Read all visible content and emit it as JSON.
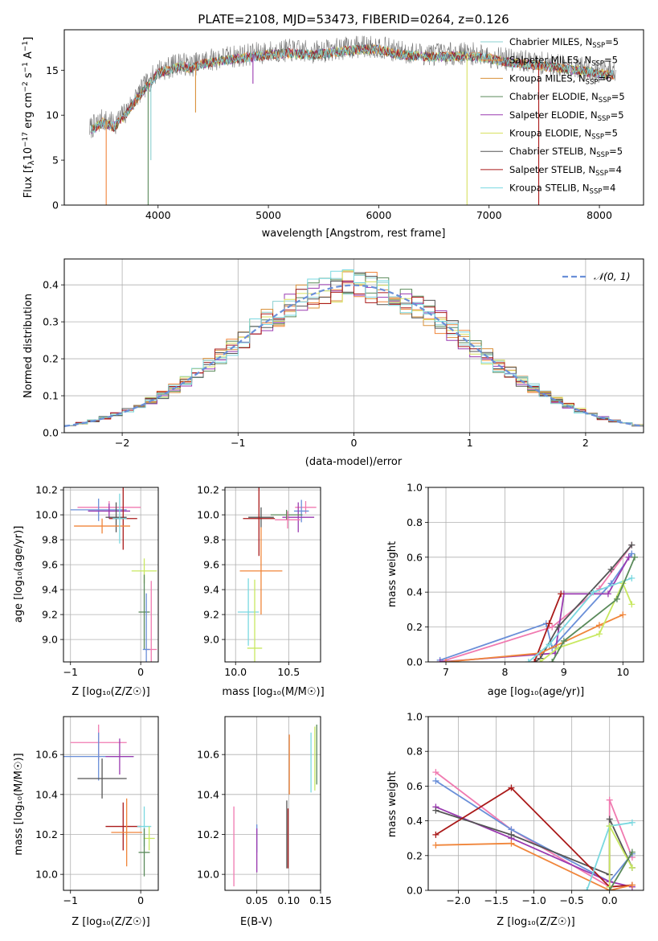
{
  "figure": {
    "title": "PLATE=2108, MJD=53473, FIBERID=0264, z=0.126"
  },
  "colors": {
    "axis": "#000000",
    "grid": "#b0b0b0",
    "normal_curve": "#6a8fd8",
    "model_lines": [
      "#8ad0d0",
      "#f0853a",
      "#d9903a",
      "#5a8a5a",
      "#9a3ab0",
      "#d8e060",
      "#555555",
      "#aa1a1a",
      "#7ad8e0"
    ],
    "point_lines": [
      "#f07ab0",
      "#6a8fd8",
      "#9a3ab0",
      "#555555",
      "#aa1a1a",
      "#f0853a",
      "#7ad8e0",
      "#c8e860",
      "#5a8a5a"
    ]
  },
  "chart_data": [
    {
      "id": "spectrum",
      "type": "line",
      "title": "PLATE=2108, MJD=53473, FIBERID=0264, z=0.126",
      "xlabel": "wavelength [Angstrom, rest frame]",
      "ylabel_parts": [
        "Flux [f",
        "λ",
        "10",
        "−17",
        " erg cm",
        "−2",
        " s",
        "−1",
        " A",
        "−1",
        "]"
      ],
      "xlim": [
        3150,
        8400
      ],
      "ylim": [
        0,
        19.5
      ],
      "xticks": [
        4000,
        5000,
        6000,
        7000,
        8000
      ],
      "xtick_labels": [
        "4000",
        "5000",
        "6000",
        "7000",
        "8000"
      ],
      "yticks": [
        0,
        5,
        10,
        15
      ],
      "ytick_labels": [
        "0",
        "5",
        "10",
        "15"
      ],
      "legend_location": "right",
      "series": [
        {
          "name": "Chabrier MILES, N_SSP=5",
          "label_main": "Chabrier MILES, N",
          "label_sub": "SSP",
          "label_end": "=5"
        },
        {
          "name": "Salpeter MILES, N_SSP=5",
          "label_main": "Salpeter MILES, N",
          "label_sub": "SSP",
          "label_end": "=5"
        },
        {
          "name": "Kroupa MILES, N_SSP=6",
          "label_main": "Kroupa MILES, N",
          "label_sub": "SSP",
          "label_end": "=6"
        },
        {
          "name": "Chabrier ELODIE, N_SSP=5",
          "label_main": "Chabrier ELODIE, N",
          "label_sub": "SSP",
          "label_end": "=5"
        },
        {
          "name": "Salpeter ELODIE, N_SSP=5",
          "label_main": "Salpeter ELODIE, N",
          "label_sub": "SSP",
          "label_end": "=5"
        },
        {
          "name": "Kroupa ELODIE, N_SSP=5",
          "label_main": "Kroupa ELODIE, N",
          "label_sub": "SSP",
          "label_end": "=5"
        },
        {
          "name": "Chabrier STELIB, N_SSP=5",
          "label_main": "Chabrier STELIB, N",
          "label_sub": "SSP",
          "label_end": "=5"
        },
        {
          "name": "Salpeter STELIB, N_SSP=4",
          "label_main": "Salpeter STELIB, N",
          "label_sub": "SSP",
          "label_end": "=4"
        },
        {
          "name": "Kroupa STELIB, N_SSP=4",
          "label_main": "Kroupa STELIB, N",
          "label_sub": "SSP",
          "label_end": "=4"
        }
      ],
      "envelope": {
        "x": [
          3380,
          3500,
          3600,
          3700,
          3800,
          3900,
          4000,
          4100,
          4200,
          4300,
          4400,
          4600,
          4800,
          5000,
          5200,
          5400,
          5600,
          5800,
          6000,
          6200,
          6400,
          6600,
          6800,
          7000,
          7200,
          7400,
          7600,
          7800,
          8000,
          8150
        ],
        "y": [
          8.5,
          9.5,
          9.0,
          10.2,
          12.0,
          13.5,
          15.0,
          15.3,
          15.8,
          15.5,
          16.0,
          16.4,
          16.7,
          17.0,
          17.2,
          17.0,
          17.3,
          17.6,
          17.6,
          17.0,
          16.8,
          16.8,
          16.9,
          16.6,
          16.1,
          15.9,
          15.6,
          15.3,
          14.9,
          14.8
        ]
      },
      "drops": [
        {
          "x": 3530,
          "y": 0
        },
        {
          "x": 3910,
          "y": 0
        },
        {
          "x": 6800,
          "y": 0
        },
        {
          "x": 7450,
          "y": 0
        },
        {
          "x": 3935,
          "y": 5
        },
        {
          "x": 4340,
          "y": 10.3
        },
        {
          "x": 4860,
          "y": 13.5
        }
      ]
    },
    {
      "id": "residuals",
      "type": "histogram",
      "xlabel": "(data-model)/error",
      "ylabel": "Normed distribution",
      "xlim": [
        -2.5,
        2.5
      ],
      "ylim": [
        0,
        0.47
      ],
      "xticks": [
        -2,
        -1,
        0,
        1,
        2
      ],
      "xtick_labels": [
        "−2",
        "−1",
        "0",
        "1",
        "2"
      ],
      "yticks": [
        0,
        0.1,
        0.2,
        0.3,
        0.4
      ],
      "ytick_labels": [
        "0.0",
        "0.1",
        "0.2",
        "0.3",
        "0.4"
      ],
      "grid": true,
      "legend_location": "top-right",
      "normal_label": "𝒩(0, 1)",
      "bin_width": 0.1
    },
    {
      "id": "age-vs-Z",
      "type": "scatter",
      "xlabel": "Z [log₁₀(Z/Z☉)]",
      "ylabel": "age  [log₁₀(age/yr)]",
      "xlim": [
        -1.1,
        0.25
      ],
      "ylim": [
        8.82,
        10.22
      ],
      "xticks": [
        -1,
        0
      ],
      "xtick_labels": [
        "−1",
        "0"
      ],
      "yticks": [
        9.0,
        9.2,
        9.4,
        9.6,
        9.8,
        10.0,
        10.2
      ],
      "ytick_labels": [
        "9.0",
        "9.2",
        "9.4",
        "9.6",
        "9.8",
        "10.0",
        "10.2"
      ],
      "grid": true,
      "points": [
        {
          "x": -0.45,
          "y": 10.06,
          "xerr": 0.45,
          "yerr": 0.05
        },
        {
          "x": -0.6,
          "y": 10.04,
          "xerr": 0.4,
          "yerr": 0.09
        },
        {
          "x": -0.45,
          "y": 10.03,
          "xerr": 0.3,
          "yerr": 0.06
        },
        {
          "x": -0.35,
          "y": 9.98,
          "xerr": 0.15,
          "yerr": 0.12
        },
        {
          "x": -0.25,
          "y": 9.97,
          "xerr": 0.2,
          "yerr": 0.25
        },
        {
          "x": -0.55,
          "y": 9.91,
          "xerr": 0.4,
          "yerr": 0.06
        },
        {
          "x": -0.3,
          "y": 9.97,
          "xerr": 0.1,
          "yerr": 0.2
        },
        {
          "x": 0.05,
          "y": 9.55,
          "xerr": 0.18,
          "yerr": 0.1
        },
        {
          "x": 0.05,
          "y": 9.22,
          "xerr": 0.08,
          "yerr": 0.3
        },
        {
          "x": 0.15,
          "y": 8.92,
          "xerr": 0.08,
          "yerr": 0.55
        },
        {
          "x": 0.08,
          "y": 8.92,
          "xerr": 0.05,
          "yerr": 0.45
        }
      ]
    },
    {
      "id": "age-vs-mass",
      "type": "scatter",
      "xlabel": "mass [log₁₀(M/M☉)]",
      "xlim": [
        9.9,
        10.8
      ],
      "ylim": [
        8.82,
        10.22
      ],
      "xticks": [
        10.0,
        10.5
      ],
      "xtick_labels": [
        "10.0",
        "10.5"
      ],
      "yticks": [
        9.0,
        9.2,
        9.4,
        9.6,
        9.8,
        10.0,
        10.2
      ],
      "ytick_labels": [
        "9.0",
        "9.2",
        "9.4",
        "9.6",
        "9.8",
        "10.0",
        "10.2"
      ],
      "grid": true,
      "points": [
        {
          "x": 10.66,
          "y": 10.06,
          "xerr": 0.1,
          "yerr": 0.05
        },
        {
          "x": 10.62,
          "y": 10.03,
          "xerr": 0.07,
          "yerr": 0.09
        },
        {
          "x": 10.59,
          "y": 9.98,
          "xerr": 0.15,
          "yerr": 0.12
        },
        {
          "x": 10.24,
          "y": 9.98,
          "xerr": 0.12,
          "yerr": 0.08
        },
        {
          "x": 10.22,
          "y": 9.97,
          "xerr": 0.15,
          "yerr": 0.3
        },
        {
          "x": 10.24,
          "y": 9.55,
          "xerr": 0.2,
          "yerr": 0.35
        },
        {
          "x": 10.12,
          "y": 9.22,
          "xerr": 0.1,
          "yerr": 0.27
        },
        {
          "x": 10.18,
          "y": 8.93,
          "xerr": 0.07,
          "yerr": 0.55
        },
        {
          "x": 10.48,
          "y": 10.0,
          "xerr": 0.15,
          "yerr": 0.04
        },
        {
          "x": 10.49,
          "y": 9.96,
          "xerr": 0.12,
          "yerr": 0.07
        }
      ]
    },
    {
      "id": "massweight-vs-age",
      "type": "line",
      "xlabel": "age  [log₁₀(age/yr)]",
      "ylabel": "mass weight",
      "xlim": [
        6.7,
        10.35
      ],
      "ylim": [
        0,
        1.0
      ],
      "xticks": [
        7,
        8,
        9,
        10
      ],
      "xtick_labels": [
        "7",
        "8",
        "9",
        "10"
      ],
      "yticks": [
        0,
        0.2,
        0.4,
        0.6,
        0.8,
        1.0
      ],
      "ytick_labels": [
        "0.0",
        "0.2",
        "0.4",
        "0.6",
        "0.8",
        "1.0"
      ],
      "grid": true,
      "series": [
        {
          "x": [
            6.9,
            8.8,
            9.6,
            10.15
          ],
          "y": [
            0.0,
            0.2,
            0.42,
            0.67
          ]
        },
        {
          "x": [
            6.9,
            8.7,
            8.8,
            9.8,
            10.15
          ],
          "y": [
            0.01,
            0.22,
            0.08,
            0.45,
            0.62
          ]
        },
        {
          "x": [
            6.9,
            8.85,
            9.0,
            9.75,
            10.1
          ],
          "y": [
            0.0,
            0.05,
            0.39,
            0.39,
            0.6
          ]
        },
        {
          "x": [
            8.5,
            8.6,
            8.9,
            9.8,
            10.15
          ],
          "y": [
            0.0,
            0.02,
            0.2,
            0.53,
            0.67
          ]
        },
        {
          "x": [
            8.5,
            8.75,
            8.95
          ],
          "y": [
            0.0,
            0.22,
            0.39
          ]
        },
        {
          "x": [
            7.0,
            8.6,
            9.6,
            10.0
          ],
          "y": [
            0.0,
            0.05,
            0.21,
            0.27
          ]
        },
        {
          "x": [
            8.4,
            8.75,
            9.5,
            10.15
          ],
          "y": [
            0.0,
            0.1,
            0.4,
            0.48
          ]
        },
        {
          "x": [
            8.6,
            8.9,
            9.6,
            10.0,
            10.15
          ],
          "y": [
            0.0,
            0.08,
            0.16,
            0.45,
            0.33
          ]
        },
        {
          "x": [
            8.8,
            9.0,
            9.9,
            10.2
          ],
          "y": [
            0.0,
            0.12,
            0.36,
            0.6
          ]
        }
      ]
    },
    {
      "id": "mass-vs-Z",
      "type": "scatter",
      "xlabel": "Z [log₁₀(Z/Z☉)]",
      "ylabel": "mass [log₁₀(M/M☉)]",
      "xlim": [
        -1.1,
        0.25
      ],
      "ylim": [
        9.92,
        10.79
      ],
      "xticks": [
        -1,
        0
      ],
      "xtick_labels": [
        "−1",
        "0"
      ],
      "yticks": [
        10.0,
        10.2,
        10.4,
        10.6
      ],
      "ytick_labels": [
        "10.0",
        "10.2",
        "10.4",
        "10.6"
      ],
      "grid": true,
      "points": [
        {
          "x": -0.6,
          "y": 10.66,
          "xerr": 0.4,
          "yerr": 0.09
        },
        {
          "x": -0.6,
          "y": 10.59,
          "xerr": 0.5,
          "yerr": 0.12
        },
        {
          "x": -0.3,
          "y": 10.59,
          "xerr": 0.2,
          "yerr": 0.09
        },
        {
          "x": -0.55,
          "y": 10.48,
          "xerr": 0.35,
          "yerr": 0.1
        },
        {
          "x": -0.25,
          "y": 10.24,
          "xerr": 0.25,
          "yerr": 0.12
        },
        {
          "x": -0.2,
          "y": 10.21,
          "xerr": 0.22,
          "yerr": 0.17
        },
        {
          "x": 0.05,
          "y": 10.24,
          "xerr": 0.1,
          "yerr": 0.1
        },
        {
          "x": 0.12,
          "y": 10.18,
          "xerr": 0.08,
          "yerr": 0.06
        },
        {
          "x": 0.05,
          "y": 10.11,
          "xerr": 0.08,
          "yerr": 0.12
        }
      ]
    },
    {
      "id": "mass-vs-EBV",
      "type": "scatter",
      "xlabel": "E(B-V)",
      "xlim": [
        0.0,
        0.15
      ],
      "ylim": [
        9.92,
        10.79
      ],
      "xticks": [
        0.05,
        0.1,
        0.15
      ],
      "xtick_labels": [
        "0.05",
        "0.10",
        "0.15"
      ],
      "yticks": [
        10.0,
        10.2,
        10.4,
        10.6
      ],
      "ytick_labels": [
        "10.0",
        "10.2",
        "10.4",
        "10.6"
      ],
      "grid": true,
      "points": [
        {
          "x": 0.014,
          "y": 10.14,
          "yerr": 0.2
        },
        {
          "x": 0.05,
          "y": 10.18,
          "yerr": 0.07
        },
        {
          "x": 0.05,
          "y": 10.12,
          "yerr": 0.11
        },
        {
          "x": 0.097,
          "y": 10.2,
          "yerr": 0.17
        },
        {
          "x": 0.099,
          "y": 10.18,
          "yerr": 0.15
        },
        {
          "x": 0.101,
          "y": 10.55,
          "yerr": 0.15
        },
        {
          "x": 0.135,
          "y": 10.56,
          "yerr": 0.15
        },
        {
          "x": 0.141,
          "y": 10.58,
          "yerr": 0.16
        },
        {
          "x": 0.144,
          "y": 10.6,
          "yerr": 0.15
        }
      ]
    },
    {
      "id": "massweight-vs-Z",
      "type": "line",
      "xlabel": "Z [log₁₀(Z/Z☉)]",
      "ylabel": "mass weight",
      "xlim": [
        -2.4,
        0.45
      ],
      "ylim": [
        0,
        1.0
      ],
      "xticks": [
        -2.0,
        -1.5,
        -1.0,
        -0.5,
        0.0
      ],
      "xtick_labels": [
        "−2.0",
        "−1.5",
        "−1.0",
        "−0.5",
        "0.0"
      ],
      "yticks": [
        0,
        0.2,
        0.4,
        0.6,
        0.8,
        1.0
      ],
      "ytick_labels": [
        "0.0",
        "0.2",
        "0.4",
        "0.6",
        "0.8",
        "1.0"
      ],
      "grid": true,
      "series": [
        {
          "x": [
            -2.3,
            -1.3,
            0.0,
            0.0,
            0.3
          ],
          "y": [
            0.68,
            0.35,
            0.02,
            0.52,
            0.19
          ]
        },
        {
          "x": [
            -2.3,
            -1.3,
            0.0,
            0.3
          ],
          "y": [
            0.63,
            0.35,
            0.05,
            0.21
          ]
        },
        {
          "x": [
            -2.3,
            -1.3,
            0.0,
            0.3
          ],
          "y": [
            0.48,
            0.3,
            0.05,
            0.02
          ]
        },
        {
          "x": [
            -2.3,
            -1.3,
            0.0,
            0.0,
            0.3
          ],
          "y": [
            0.46,
            0.32,
            0.09,
            0.41,
            0.13
          ]
        },
        {
          "x": [
            -2.3,
            -1.3,
            0.0,
            0.3
          ],
          "y": [
            0.32,
            0.59,
            0.02,
            0.03
          ]
        },
        {
          "x": [
            -2.3,
            -1.3,
            0.0,
            0.3
          ],
          "y": [
            0.26,
            0.27,
            0.0,
            0.03
          ]
        },
        {
          "x": [
            -0.3,
            0.0,
            0.3
          ],
          "y": [
            0.0,
            0.37,
            0.39
          ]
        },
        {
          "x": [
            0.0,
            0.0,
            0.3
          ],
          "y": [
            0.02,
            0.37,
            0.13
          ]
        },
        {
          "x": [
            0.0,
            0.3
          ],
          "y": [
            0.0,
            0.22
          ]
        }
      ]
    }
  ]
}
